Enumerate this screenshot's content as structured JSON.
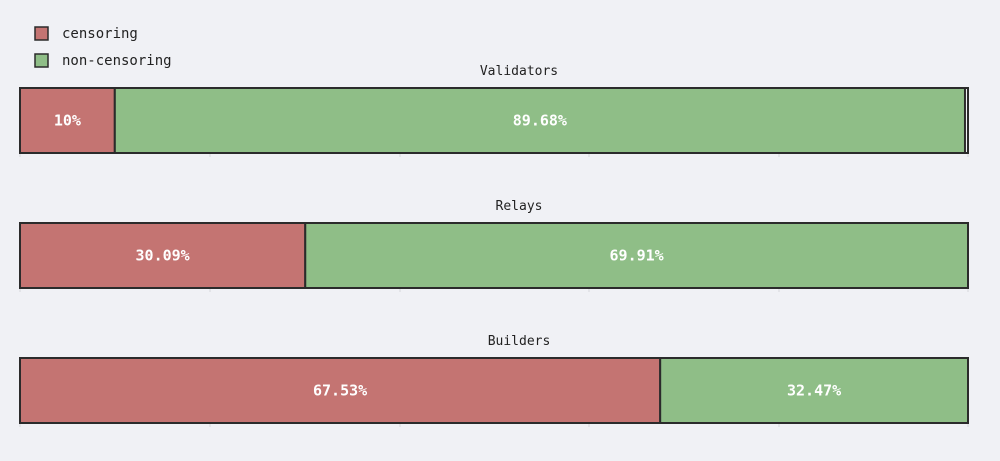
{
  "colors": {
    "censoring": "#c47472",
    "non_censoring": "#8fbe87",
    "border": "#2b2b2b",
    "background": "#f0f1f5"
  },
  "legend": {
    "items": [
      {
        "label": "censoring",
        "color": "#c47472"
      },
      {
        "label": "non-censoring",
        "color": "#8fbe87"
      }
    ]
  },
  "chart_data": {
    "type": "bar",
    "orientation": "horizontal",
    "stacked": true,
    "legend_position": "top-left",
    "grid": false,
    "panels": [
      {
        "title": "Validators",
        "series": [
          {
            "name": "censoring",
            "value": 10,
            "label": "10%"
          },
          {
            "name": "non-censoring",
            "value": 89.68,
            "label": "89.68%"
          }
        ]
      },
      {
        "title": "Relays",
        "series": [
          {
            "name": "censoring",
            "value": 30.09,
            "label": "30.09%"
          },
          {
            "name": "non-censoring",
            "value": 69.91,
            "label": "69.91%"
          }
        ]
      },
      {
        "title": "Builders",
        "series": [
          {
            "name": "censoring",
            "value": 67.53,
            "label": "67.53%"
          },
          {
            "name": "non-censoring",
            "value": 32.47,
            "label": "32.47%"
          }
        ]
      }
    ]
  }
}
